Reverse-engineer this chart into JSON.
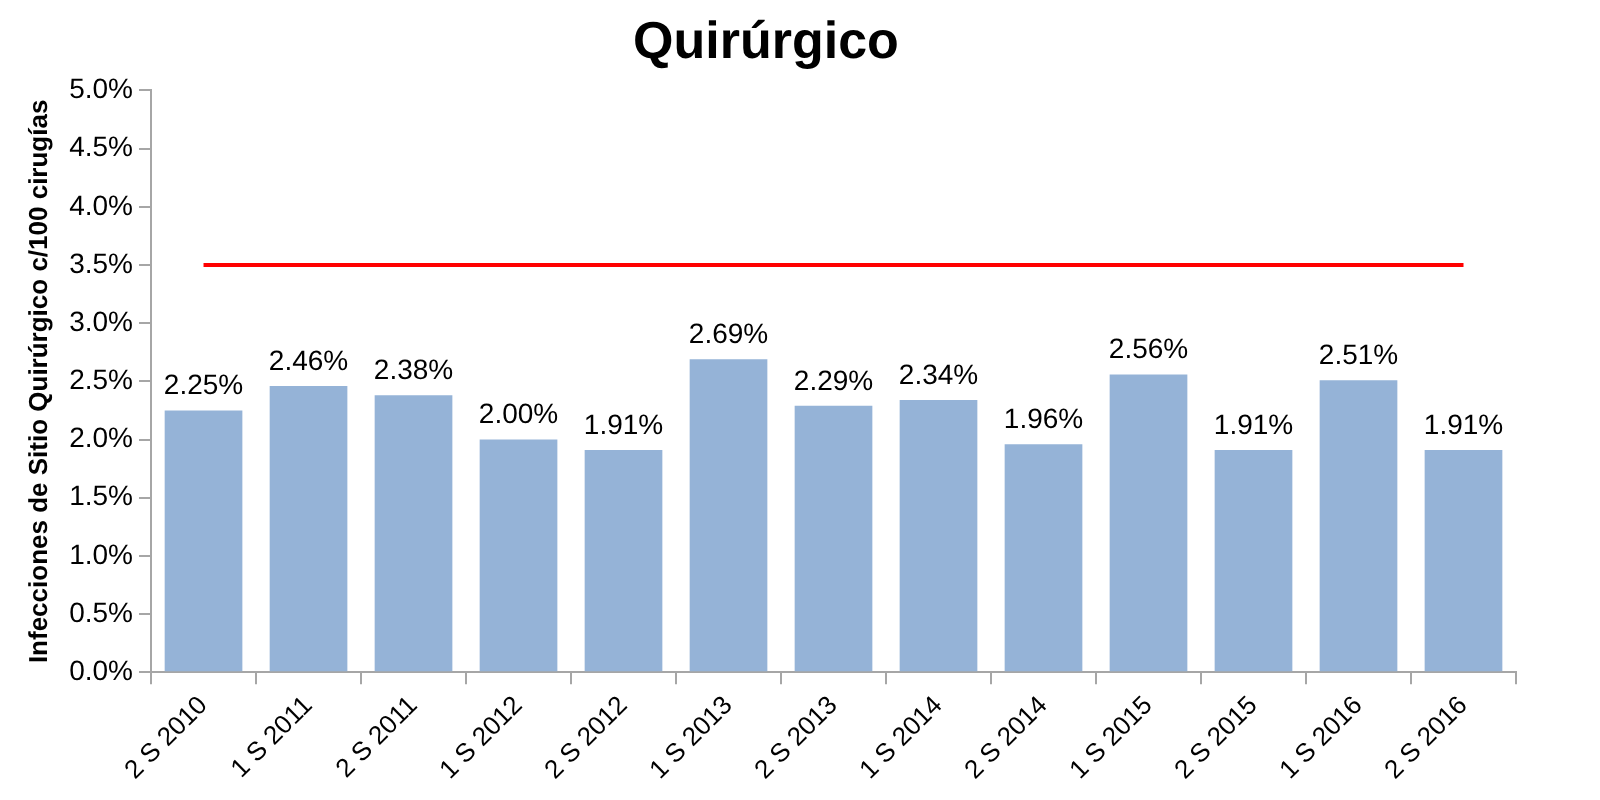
{
  "chart_data": {
    "type": "bar",
    "title": "Quirúrgico",
    "ylabel": "Infecciones de Sitio Quirúrgico c/100 cirugías",
    "categories": [
      "2 S 2010",
      "1 S 2011",
      "2 S 2011",
      "1 S 2012",
      "2 S 2012",
      "1 S 2013",
      "2 S 2013",
      "1 S 2014",
      "2 S 2014",
      "1 S 2015",
      "2 S 2015",
      "1 S 2016",
      "2 S 2016"
    ],
    "values": [
      2.25,
      2.46,
      2.38,
      2.0,
      1.91,
      2.69,
      2.29,
      2.34,
      1.96,
      2.56,
      1.91,
      2.51,
      1.91
    ],
    "value_labels": [
      "2.25%",
      "2.46%",
      "2.38%",
      "2.00%",
      "1.91%",
      "2.69%",
      "2.29%",
      "2.34%",
      "1.96%",
      "2.56%",
      "1.91%",
      "2.51%",
      "1.91%"
    ],
    "color": "#95b3d7",
    "ylim": [
      0,
      5
    ],
    "yticks": [
      {
        "value": 0,
        "label": "0.0%"
      },
      {
        "value": 0.5,
        "label": "0.5%"
      },
      {
        "value": 1,
        "label": "1.0%"
      },
      {
        "value": 1.5,
        "label": "1.5%"
      },
      {
        "value": 2,
        "label": "2.0%"
      },
      {
        "value": 2.5,
        "label": "2.5%"
      },
      {
        "value": 3,
        "label": "3.0%"
      },
      {
        "value": 3.5,
        "label": "3.5%"
      },
      {
        "value": 4,
        "label": "4.0%"
      },
      {
        "value": 4.5,
        "label": "4.5%"
      },
      {
        "value": 5,
        "label": "5.0%"
      }
    ],
    "ref_lines": [
      {
        "axis": "y",
        "value": 3.5,
        "color": "#ff0000"
      }
    ],
    "grid": false,
    "legend": false
  }
}
